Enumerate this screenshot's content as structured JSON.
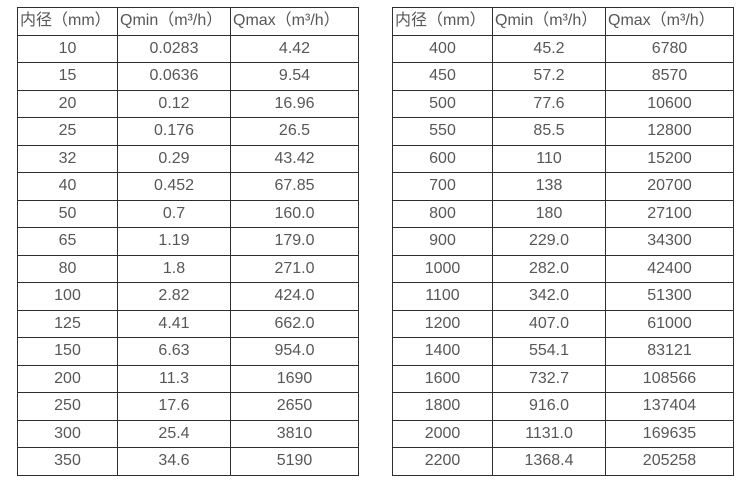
{
  "tables": [
    {
      "name": "small-diameter-flow-table",
      "headers": [
        "内径（mm）",
        "Qmin（m³/h）",
        "Qmax（m³/h）"
      ],
      "rows": [
        [
          "10",
          "0.0283",
          "4.42"
        ],
        [
          "15",
          "0.0636",
          "9.54"
        ],
        [
          "20",
          "0.12",
          "16.96"
        ],
        [
          "25",
          "0.176",
          "26.5"
        ],
        [
          "32",
          "0.29",
          "43.42"
        ],
        [
          "40",
          "0.452",
          "67.85"
        ],
        [
          "50",
          "0.7",
          "160.0"
        ],
        [
          "65",
          "1.19",
          "179.0"
        ],
        [
          "80",
          "1.8",
          "271.0"
        ],
        [
          "100",
          "2.82",
          "424.0"
        ],
        [
          "125",
          "4.41",
          "662.0"
        ],
        [
          "150",
          "6.63",
          "954.0"
        ],
        [
          "200",
          "11.3",
          "1690"
        ],
        [
          "250",
          "17.6",
          "2650"
        ],
        [
          "300",
          "25.4",
          "3810"
        ],
        [
          "350",
          "34.6",
          "5190"
        ]
      ]
    },
    {
      "name": "large-diameter-flow-table",
      "headers": [
        "内径（mm）",
        "Qmin（m³/h）",
        "Qmax（m³/h）"
      ],
      "rows": [
        [
          "400",
          "45.2",
          "6780"
        ],
        [
          "450",
          "57.2",
          "8570"
        ],
        [
          "500",
          "77.6",
          "10600"
        ],
        [
          "550",
          "85.5",
          "12800"
        ],
        [
          "600",
          "110",
          "15200"
        ],
        [
          "700",
          "138",
          "20700"
        ],
        [
          "800",
          "180",
          "27100"
        ],
        [
          "900",
          "229.0",
          "34300"
        ],
        [
          "1000",
          "282.0",
          "42400"
        ],
        [
          "1100",
          "342.0",
          "51300"
        ],
        [
          "1200",
          "407.0",
          "61000"
        ],
        [
          "1400",
          "554.1",
          "83121"
        ],
        [
          "1600",
          "732.7",
          "108566"
        ],
        [
          "1800",
          "916.0",
          "137404"
        ],
        [
          "2000",
          "1131.0",
          "169635"
        ],
        [
          "2200",
          "1368.4",
          "205258"
        ]
      ]
    }
  ],
  "cell_semantics": [
    "cell-diameter",
    "cell-qmin",
    "cell-qmax"
  ],
  "colors": {
    "border": "#2e2e2e",
    "text": "#575757",
    "background": "#ffffff"
  }
}
